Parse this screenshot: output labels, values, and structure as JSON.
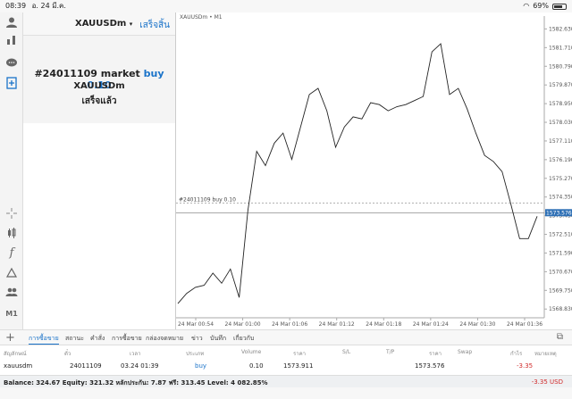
{
  "status_bar": {
    "time": "08:39",
    "date": "อ. 24 มี.ค.",
    "battery": "69%",
    "wifi_icon": "wifi-icon"
  },
  "order": {
    "symbol": "XAUUSDm",
    "close_label": "เสร็จสิ้น",
    "result_prefix": "#24011109 market ",
    "result_action": "buy 0.10",
    "result_symbol": "XAUUSDm",
    "result_status": "เสร็จแล้ว"
  },
  "chart": {
    "title": "XAUUSDm • M1",
    "position_label": "#24011109 buy 0.10",
    "current_price": "1573.576",
    "price_ticks": [
      "1582.630",
      "1581.710",
      "1580.790",
      "1579.870",
      "1578.950",
      "1578.030",
      "1577.110",
      "1576.190",
      "1575.270",
      "1574.350",
      "1573.430",
      "1572.510",
      "1571.590",
      "1570.670",
      "1569.750",
      "1568.830"
    ],
    "time_ticks": [
      "24 Mar 00:54",
      "24 Mar 01:00",
      "24 Mar 01:06",
      "24 Mar 01:12",
      "24 Mar 01:18",
      "24 Mar 01:24",
      "24 Mar 01:30",
      "24 Mar 01:36"
    ]
  },
  "chart_data": {
    "type": "line",
    "title": "XAUUSDm • M1",
    "ylim": [
      1568.4,
      1583.0
    ],
    "y": [
      1569.1,
      1569.6,
      1569.9,
      1570.0,
      1570.6,
      1570.1,
      1570.8,
      1569.4,
      1573.7,
      1576.6,
      1575.9,
      1577.0,
      1577.5,
      1576.2,
      1577.8,
      1579.4,
      1579.7,
      1578.6,
      1576.8,
      1577.8,
      1578.3,
      1578.2,
      1579.0,
      1578.9,
      1578.6,
      1578.8,
      1578.9,
      1579.1,
      1579.3,
      1581.5,
      1581.9,
      1579.4,
      1579.7,
      1578.7,
      1577.5,
      1576.4,
      1576.1,
      1575.6,
      1574.0,
      1572.3,
      1572.3,
      1573.4
    ],
    "position_price": 1574.05,
    "current_price": 1573.576
  },
  "trade_tabs": {
    "tabs": [
      "การซื้อขาย",
      "สถานะ",
      "คำสั่ง",
      "การซื้อขาย",
      "กล่องจดหมาย",
      "ข่าว",
      "บันทึก",
      "เกี่ยวกับ"
    ],
    "plus_icon": "plus-icon",
    "settings_icon": "layout-icon"
  },
  "table": {
    "headers": [
      "สัญลักษณ์",
      "ตั๋ว",
      "เวลา",
      "ประเภท",
      "Volume",
      "ราคา",
      "S/L",
      "T/P",
      "ราคา",
      "Swap",
      "กำไร",
      "หมายเหตุ"
    ],
    "row": {
      "symbol": "xauusdm",
      "ticket": "24011109",
      "time": "03.24 01:39",
      "type": "buy",
      "volume": "0.10",
      "price": "1573.911",
      "sl": "",
      "tp": "",
      "current": "1573.576",
      "swap": "",
      "profit": "-3.35",
      "comment": ""
    }
  },
  "balance": {
    "text": "Balance: 324.67 Equity: 321.32 หลักประกัน: 7.87 ฟรี: 313.45 Level: 4 082.85%",
    "profit": "-3.35  USD"
  }
}
